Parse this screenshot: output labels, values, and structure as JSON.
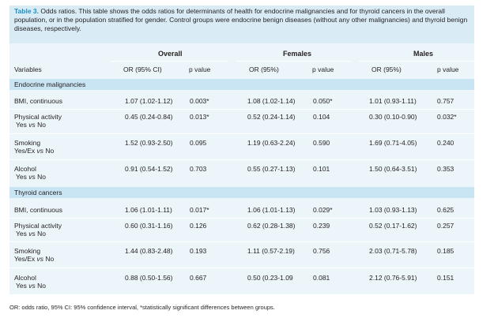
{
  "caption": {
    "label": "Table 3.",
    "text": " Odds ratios. This table shows the odds ratios for determinants of health for endocrine malignancies and for thyroid cancers in the overall population, or in the population stratified for gender. Control groups were endocrine benign diseases (without any other malignancies) and thyroid benign diseases, respectively."
  },
  "header": {
    "groups": [
      "Overall",
      "Females",
      "Males"
    ],
    "columns": [
      "Variables",
      "OR (95% CI)",
      "p value",
      "OR (95%)",
      "p value",
      "OR (95%)",
      "p value"
    ]
  },
  "sections": [
    {
      "title": "Endocrine malignancies",
      "rows": [
        {
          "var1": "BMI, continuous",
          "var2": "",
          "c": [
            "1.07 (1.02-1.12)",
            "0.003*",
            "1.08 (1.02-1.14)",
            "0.050*",
            "1.01 (0.93-1.11)",
            "0.757"
          ]
        },
        {
          "var1": "Physical activity",
          "var2": "Yes vs No",
          "c": [
            "0.45 (0.24-0.84)",
            "0.013*",
            "0.52 (0.24-1.14)",
            "0.104",
            "0.30 (0.10-0.90)",
            "0.032*"
          ]
        },
        {
          "var1": "Smoking",
          "var2": "Yes/Ex vs No",
          "c": [
            "1.52 (0.93-2.50)",
            "0.095",
            "1.19 (0.63-2.24)",
            "0.590",
            "1.69 (0.71-4.05)",
            "0.240"
          ]
        },
        {
          "var1": "Alcohol",
          "var2": "Yes vs No",
          "c": [
            "0.91 (0.54-1.52)",
            "0.703",
            "0.55 (0.27-1.13)",
            "0.101",
            "1.50 (0.64-3.51)",
            "0.353"
          ]
        }
      ]
    },
    {
      "title": "Thyroid cancers",
      "rows": [
        {
          "var1": "BMI, continuous",
          "var2": "",
          "c": [
            "1.06 (1.01-1.11)",
            "0.017*",
            "1.06 (1.01-1.13)",
            "0.029*",
            "1.03 (0.93-1.13)",
            "0.625"
          ]
        },
        {
          "var1": "Physical activity",
          "var2": "Yes vs No",
          "c": [
            "0.60 (0.31-1.16)",
            "0.126",
            "0.62 (0.28-1.38)",
            "0.239",
            "0.52 (0.17-1.62)",
            "0.257"
          ]
        },
        {
          "var1": "Smoking",
          "var2": "Yes/Ex vs No",
          "c": [
            "1.44 (0.83-2.48)",
            "0.193",
            "1.11 (0.57-2.19)",
            "0.756",
            "2.03 (0.71-5.78)",
            "0.185"
          ]
        },
        {
          "var1": "Alcohol",
          "var2": "Yes vs No",
          "c": [
            "0.88 (0.50-1.56)",
            "0.667",
            "0.50 (0.23-1.09",
            "0.081",
            "2.12 (0.76-5.91)",
            "0.151"
          ]
        }
      ]
    }
  ],
  "footnote": "OR: odds ratio, 95% CI: 95% confidence interval, *statistically significant differences between groups."
}
